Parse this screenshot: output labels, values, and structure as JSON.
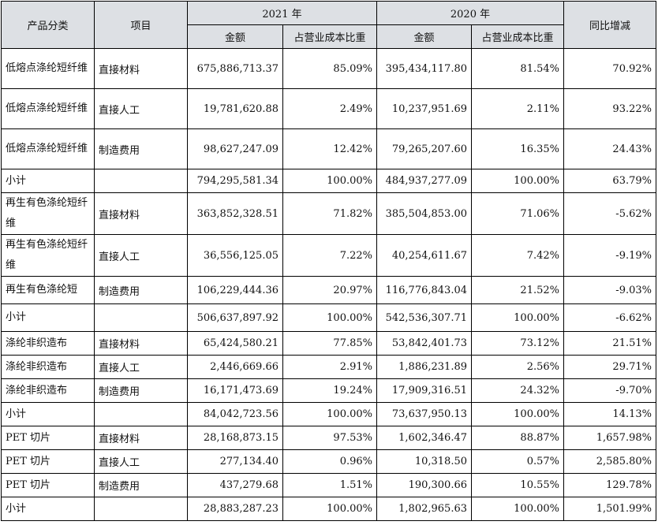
{
  "headers": {
    "category": "产品分类",
    "item": "项目",
    "year_2021": "2021 年",
    "year_2020": "2020 年",
    "yoy": "同比增减",
    "amount_2021": "金额",
    "ratio_2021": "占营业成本比重",
    "amount_2020": "金额",
    "ratio_2020": "占营业成本比重"
  },
  "rows": [
    {
      "category": "低熔点涤纶短纤维",
      "item": "直接材料",
      "amount_2021": "675,886,713.37",
      "ratio_2021": "85.09%",
      "amount_2020": "395,434,117.80",
      "ratio_2020": "81.54%",
      "yoy": "70.92%"
    },
    {
      "category": "低熔点涤纶短纤维",
      "item": "直接人工",
      "amount_2021": "19,781,620.88",
      "ratio_2021": "2.49%",
      "amount_2020": "10,237,951.69",
      "ratio_2020": "2.11%",
      "yoy": "93.22%"
    },
    {
      "category": "低熔点涤纶短纤维",
      "item": "制造费用",
      "amount_2021": "98,627,247.09",
      "ratio_2021": "12.42%",
      "amount_2020": "79,265,207.60",
      "ratio_2020": "16.35%",
      "yoy": "24.43%"
    },
    {
      "category": "小计",
      "item": "",
      "amount_2021": "794,295,581.34",
      "ratio_2021": "100.00%",
      "amount_2020": "484,937,277.09",
      "ratio_2020": "100.00%",
      "yoy": "63.79%"
    },
    {
      "category": "再生有色涤纶短纤维",
      "item": "直接材料",
      "amount_2021": "363,852,328.51",
      "ratio_2021": "71.82%",
      "amount_2020": "385,504,853.00",
      "ratio_2020": "71.06%",
      "yoy": "-5.62%"
    },
    {
      "category": "再生有色涤纶短纤维",
      "item": "直接人工",
      "amount_2021": "36,556,125.05",
      "ratio_2021": "7.22%",
      "amount_2020": "40,254,611.67",
      "ratio_2020": "7.42%",
      "yoy": "-9.19%"
    },
    {
      "category": "再生有色涤纶短",
      "item": "制造费用",
      "amount_2021": "106,229,444.36",
      "ratio_2021": "20.97%",
      "amount_2020": "116,776,843.04",
      "ratio_2020": "21.52%",
      "yoy": "-9.03%"
    },
    {
      "category": "小计",
      "item": "",
      "amount_2021": "506,637,897.92",
      "ratio_2021": "100.00%",
      "amount_2020": "542,536,307.71",
      "ratio_2020": "100.00%",
      "yoy": "-6.62%"
    },
    {
      "category": "涤纶非织造布",
      "item": "直接材料",
      "amount_2021": "65,424,580.21",
      "ratio_2021": "77.85%",
      "amount_2020": "53,842,401.73",
      "ratio_2020": "73.12%",
      "yoy": "21.51%"
    },
    {
      "category": "涤纶非织造布",
      "item": "直接人工",
      "amount_2021": "2,446,669.66",
      "ratio_2021": "2.91%",
      "amount_2020": "1,886,231.89",
      "ratio_2020": "2.56%",
      "yoy": "29.71%"
    },
    {
      "category": "涤纶非织造布",
      "item": "制造费用",
      "amount_2021": "16,171,473.69",
      "ratio_2021": "19.24%",
      "amount_2020": "17,909,316.51",
      "ratio_2020": "24.32%",
      "yoy": "-9.70%"
    },
    {
      "category": "小计",
      "item": "",
      "amount_2021": "84,042,723.56",
      "ratio_2021": "100.00%",
      "amount_2020": "73,637,950.13",
      "ratio_2020": "100.00%",
      "yoy": "14.13%"
    },
    {
      "category": "PET 切片",
      "item": "直接材料",
      "amount_2021": "28,168,873.15",
      "ratio_2021": "97.53%",
      "amount_2020": "1,602,346.47",
      "ratio_2020": "88.87%",
      "yoy": "1,657.98%"
    },
    {
      "category": "PET 切片",
      "item": "直接人工",
      "amount_2021": "277,134.40",
      "ratio_2021": "0.96%",
      "amount_2020": "10,318.50",
      "ratio_2020": "0.57%",
      "yoy": "2,585.80%"
    },
    {
      "category": "PET 切片",
      "item": "制造费用",
      "amount_2021": "437,279.68",
      "ratio_2021": "1.51%",
      "amount_2020": "190,300.66",
      "ratio_2020": "10.55%",
      "yoy": "129.78%"
    },
    {
      "category": "小计",
      "item": "",
      "amount_2021": "28,883,287.23",
      "ratio_2021": "100.00%",
      "amount_2020": "1,802,965.63",
      "ratio_2020": "100.00%",
      "yoy": "1,501.99%"
    }
  ]
}
